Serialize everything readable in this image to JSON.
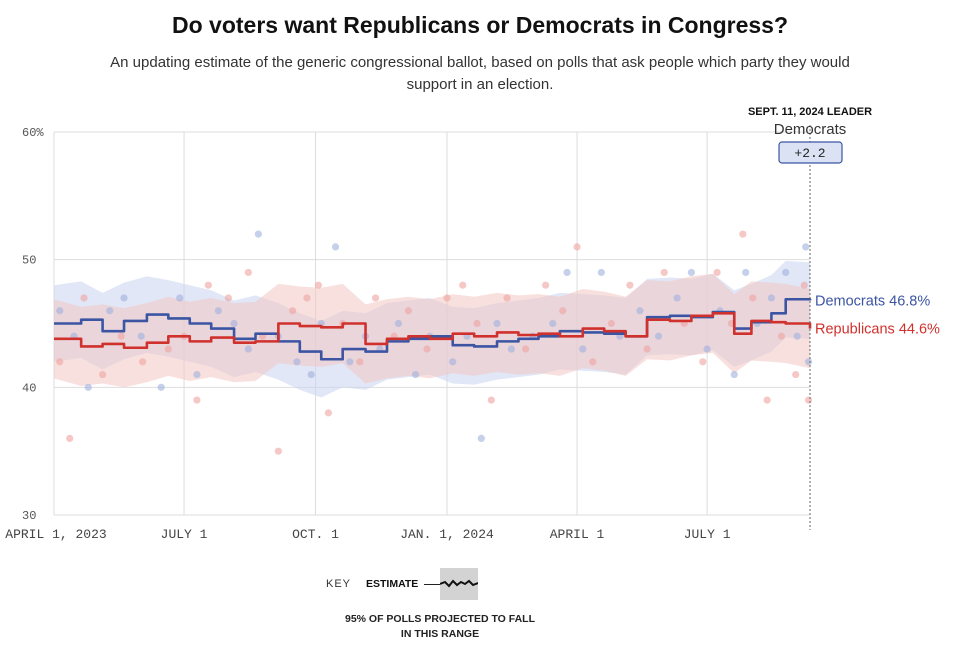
{
  "title": "Do voters want Republicans or Democrats in Congress?",
  "subtitle": "An updating estimate of the generic congressional ballot, based on polls that ask people which party they would support in an election.",
  "leader": {
    "date_label": "SEPT. 11, 2024 LEADER",
    "party": "Democrats",
    "margin": "+2.2"
  },
  "key": {
    "label": "KEY",
    "estimate_label": "ESTIMATE",
    "note": "95% OF POLLS PROJECTED TO FALL IN THIS RANGE"
  },
  "colors": {
    "dem": "#3b55a3",
    "rep": "#d0312d",
    "dem_band": "#c9d3ee",
    "rep_band": "#f3c6c4",
    "grid": "#dddddd"
  },
  "chart_data": {
    "type": "line",
    "title": "Do voters want Republicans or Democrats in Congress?",
    "xlabel": "",
    "ylabel": "",
    "ylim": [
      30,
      60
    ],
    "xlim": [
      "2023-04-01",
      "2024-09-11"
    ],
    "y_ticks": [
      {
        "value": 30,
        "label": "30"
      },
      {
        "value": 40,
        "label": "40"
      },
      {
        "value": 50,
        "label": "50"
      },
      {
        "value": 60,
        "label": "60%"
      }
    ],
    "x_ticks": [
      {
        "date": "2023-04-01",
        "label": "APRIL 1, 2023"
      },
      {
        "date": "2023-07-01",
        "label": "JULY 1"
      },
      {
        "date": "2023-10-01",
        "label": "OCT. 1"
      },
      {
        "date": "2024-01-01",
        "label": "JAN. 1, 2024"
      },
      {
        "date": "2024-04-01",
        "label": "APRIL 1"
      },
      {
        "date": "2024-07-01",
        "label": "JULY 1"
      }
    ],
    "series": [
      {
        "name": "Democrats",
        "end_label": "Democrats 46.8%",
        "band_halfwidth": 3.0,
        "points": [
          [
            "2023-04-01",
            45.0
          ],
          [
            "2023-04-20",
            45.3
          ],
          [
            "2023-05-05",
            44.4
          ],
          [
            "2023-05-20",
            45.2
          ],
          [
            "2023-06-05",
            45.7
          ],
          [
            "2023-06-20",
            45.4
          ],
          [
            "2023-07-05",
            45.0
          ],
          [
            "2023-07-20",
            44.6
          ],
          [
            "2023-08-05",
            43.8
          ],
          [
            "2023-08-20",
            44.2
          ],
          [
            "2023-09-05",
            43.6
          ],
          [
            "2023-09-20",
            42.8
          ],
          [
            "2023-10-05",
            42.2
          ],
          [
            "2023-10-20",
            43.0
          ],
          [
            "2023-11-05",
            42.8
          ],
          [
            "2023-11-20",
            43.6
          ],
          [
            "2023-12-05",
            43.8
          ],
          [
            "2023-12-20",
            44.0
          ],
          [
            "2024-01-05",
            43.3
          ],
          [
            "2024-01-20",
            43.2
          ],
          [
            "2024-02-05",
            43.6
          ],
          [
            "2024-02-20",
            43.8
          ],
          [
            "2024-03-05",
            44.0
          ],
          [
            "2024-03-20",
            44.4
          ],
          [
            "2024-04-05",
            44.3
          ],
          [
            "2024-04-20",
            44.2
          ],
          [
            "2024-05-05",
            44.0
          ],
          [
            "2024-05-20",
            45.5
          ],
          [
            "2024-06-05",
            45.6
          ],
          [
            "2024-06-20",
            45.5
          ],
          [
            "2024-07-05",
            45.9
          ],
          [
            "2024-07-20",
            44.6
          ],
          [
            "2024-08-01",
            45.1
          ],
          [
            "2024-08-15",
            45.8
          ],
          [
            "2024-08-25",
            46.9
          ],
          [
            "2024-09-11",
            46.8
          ]
        ]
      },
      {
        "name": "Republicans",
        "end_label": "Republicans 44.6%",
        "band_halfwidth": 3.1,
        "points": [
          [
            "2023-04-01",
            43.8
          ],
          [
            "2023-04-20",
            43.2
          ],
          [
            "2023-05-05",
            43.4
          ],
          [
            "2023-05-20",
            43.1
          ],
          [
            "2023-06-05",
            43.5
          ],
          [
            "2023-06-20",
            44.0
          ],
          [
            "2023-07-05",
            43.6
          ],
          [
            "2023-07-20",
            43.9
          ],
          [
            "2023-08-05",
            43.5
          ],
          [
            "2023-08-20",
            43.6
          ],
          [
            "2023-09-05",
            45.0
          ],
          [
            "2023-09-20",
            44.8
          ],
          [
            "2023-10-05",
            44.7
          ],
          [
            "2023-10-20",
            45.0
          ],
          [
            "2023-11-05",
            43.4
          ],
          [
            "2023-11-20",
            43.8
          ],
          [
            "2023-12-05",
            44.0
          ],
          [
            "2023-12-20",
            43.8
          ],
          [
            "2024-01-05",
            44.2
          ],
          [
            "2024-01-20",
            44.0
          ],
          [
            "2024-02-05",
            44.3
          ],
          [
            "2024-02-20",
            44.1
          ],
          [
            "2024-03-05",
            44.2
          ],
          [
            "2024-03-20",
            44.0
          ],
          [
            "2024-04-05",
            44.6
          ],
          [
            "2024-04-20",
            44.4
          ],
          [
            "2024-05-05",
            44.0
          ],
          [
            "2024-05-20",
            45.3
          ],
          [
            "2024-06-05",
            45.2
          ],
          [
            "2024-06-20",
            45.6
          ],
          [
            "2024-07-05",
            45.8
          ],
          [
            "2024-07-20",
            44.2
          ],
          [
            "2024-08-01",
            45.2
          ],
          [
            "2024-08-15",
            45.1
          ],
          [
            "2024-08-25",
            45.0
          ],
          [
            "2024-09-11",
            44.6
          ]
        ]
      }
    ],
    "polls": {
      "dem": [
        [
          "2023-04-05",
          46
        ],
        [
          "2023-04-15",
          44
        ],
        [
          "2023-04-25",
          40
        ],
        [
          "2023-05-10",
          46
        ],
        [
          "2023-05-20",
          47
        ],
        [
          "2023-06-01",
          44
        ],
        [
          "2023-06-15",
          40
        ],
        [
          "2023-06-28",
          47
        ],
        [
          "2023-07-10",
          41
        ],
        [
          "2023-07-25",
          46
        ],
        [
          "2023-08-05",
          45
        ],
        [
          "2023-08-15",
          43
        ],
        [
          "2023-08-22",
          52
        ],
        [
          "2023-09-05",
          44
        ],
        [
          "2023-09-18",
          42
        ],
        [
          "2023-09-28",
          41
        ],
        [
          "2023-10-05",
          45
        ],
        [
          "2023-10-15",
          51
        ],
        [
          "2023-10-25",
          42
        ],
        [
          "2023-11-05",
          44
        ],
        [
          "2023-11-15",
          43
        ],
        [
          "2023-11-28",
          45
        ],
        [
          "2023-12-10",
          41
        ],
        [
          "2023-12-20",
          44
        ],
        [
          "2024-01-05",
          42
        ],
        [
          "2024-01-15",
          44
        ],
        [
          "2024-01-25",
          36
        ],
        [
          "2024-02-05",
          45
        ],
        [
          "2024-02-15",
          43
        ],
        [
          "2024-03-01",
          44
        ],
        [
          "2024-03-15",
          45
        ],
        [
          "2024-03-25",
          49
        ],
        [
          "2024-04-05",
          43
        ],
        [
          "2024-04-18",
          49
        ],
        [
          "2024-05-01",
          44
        ],
        [
          "2024-05-15",
          46
        ],
        [
          "2024-05-28",
          44
        ],
        [
          "2024-06-10",
          47
        ],
        [
          "2024-06-20",
          49
        ],
        [
          "2024-07-01",
          43
        ],
        [
          "2024-07-10",
          46
        ],
        [
          "2024-07-20",
          41
        ],
        [
          "2024-07-28",
          49
        ],
        [
          "2024-08-05",
          45
        ],
        [
          "2024-08-15",
          47
        ],
        [
          "2024-08-25",
          49
        ],
        [
          "2024-09-02",
          44
        ],
        [
          "2024-09-08",
          51
        ],
        [
          "2024-09-10",
          42
        ]
      ],
      "rep": [
        [
          "2023-04-05",
          42
        ],
        [
          "2023-04-12",
          36
        ],
        [
          "2023-04-22",
          47
        ],
        [
          "2023-05-05",
          41
        ],
        [
          "2023-05-18",
          44
        ],
        [
          "2023-06-02",
          42
        ],
        [
          "2023-06-20",
          43
        ],
        [
          "2023-07-01",
          44
        ],
        [
          "2023-07-10",
          39
        ],
        [
          "2023-07-18",
          48
        ],
        [
          "2023-08-01",
          47
        ],
        [
          "2023-08-15",
          49
        ],
        [
          "2023-08-25",
          44
        ],
        [
          "2023-09-05",
          35
        ],
        [
          "2023-09-15",
          46
        ],
        [
          "2023-09-25",
          47
        ],
        [
          "2023-10-03",
          48
        ],
        [
          "2023-10-10",
          38
        ],
        [
          "2023-10-20",
          45
        ],
        [
          "2023-11-01",
          42
        ],
        [
          "2023-11-12",
          47
        ],
        [
          "2023-11-25",
          44
        ],
        [
          "2023-12-05",
          46
        ],
        [
          "2023-12-18",
          43
        ],
        [
          "2024-01-01",
          47
        ],
        [
          "2024-01-12",
          48
        ],
        [
          "2024-01-22",
          45
        ],
        [
          "2024-02-01",
          39
        ],
        [
          "2024-02-12",
          47
        ],
        [
          "2024-02-25",
          43
        ],
        [
          "2024-03-10",
          48
        ],
        [
          "2024-03-22",
          46
        ],
        [
          "2024-04-01",
          51
        ],
        [
          "2024-04-12",
          42
        ],
        [
          "2024-04-25",
          45
        ],
        [
          "2024-05-08",
          48
        ],
        [
          "2024-05-20",
          43
        ],
        [
          "2024-06-01",
          49
        ],
        [
          "2024-06-15",
          45
        ],
        [
          "2024-06-28",
          42
        ],
        [
          "2024-07-08",
          49
        ],
        [
          "2024-07-18",
          45
        ],
        [
          "2024-07-26",
          52
        ],
        [
          "2024-08-02",
          47
        ],
        [
          "2024-08-12",
          39
        ],
        [
          "2024-08-22",
          44
        ],
        [
          "2024-09-01",
          41
        ],
        [
          "2024-09-07",
          48
        ],
        [
          "2024-09-10",
          39
        ]
      ]
    }
  }
}
